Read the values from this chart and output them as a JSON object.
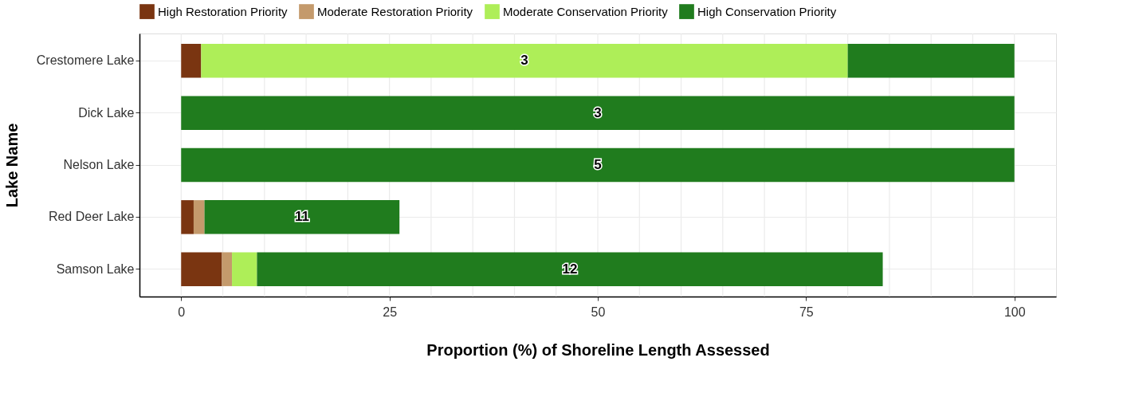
{
  "chart_data": {
    "type": "bar",
    "orientation": "horizontal",
    "stacked": true,
    "categories": [
      "Crestomere Lake",
      "Dick Lake",
      "Nelson Lake",
      "Red Deer Lake",
      "Samson Lake"
    ],
    "series": [
      {
        "name": "High Restoration Priority",
        "color": "#7a3511",
        "values": [
          2.4,
          0,
          0,
          1.5,
          4.9
        ]
      },
      {
        "name": "Moderate Restoration Priority",
        "color": "#c49a6c",
        "values": [
          0,
          0,
          0,
          1.3,
          1.2
        ]
      },
      {
        "name": "Moderate Conservation Priority",
        "color": "#aeee58",
        "values": [
          77.6,
          0,
          0,
          0,
          3.0
        ]
      },
      {
        "name": "High Conservation Priority",
        "color": "#207c1e",
        "values": [
          20.0,
          100,
          100,
          23.4,
          75.1
        ]
      }
    ],
    "xlabel": "Proportion (%) of Shoreline Length Assessed",
    "ylabel": "Lake Name",
    "xlim": [
      -5,
      105
    ],
    "xticks": [
      0,
      {
        "value": 5,
        "label": null
      },
      {
        "value": 10,
        "label": null
      },
      {
        "value": 15,
        "label": null
      },
      {
        "value": 20,
        "label": null
      },
      25,
      {
        "value": 30,
        "label": null
      },
      {
        "value": 35,
        "label": null
      },
      {
        "value": 40,
        "label": null
      },
      {
        "value": 45,
        "label": null
      },
      50,
      {
        "value": 55,
        "label": null
      },
      {
        "value": 60,
        "label": null
      },
      {
        "value": 65,
        "label": null
      },
      {
        "value": 70,
        "label": null
      },
      75,
      {
        "value": 80,
        "label": null
      },
      {
        "value": 85,
        "label": null
      },
      {
        "value": 90,
        "label": null
      },
      {
        "value": 95,
        "label": null
      },
      100
    ],
    "grid": true,
    "legend": "top",
    "annotations": [
      "3",
      "3",
      "5",
      "11",
      "12"
    ]
  }
}
